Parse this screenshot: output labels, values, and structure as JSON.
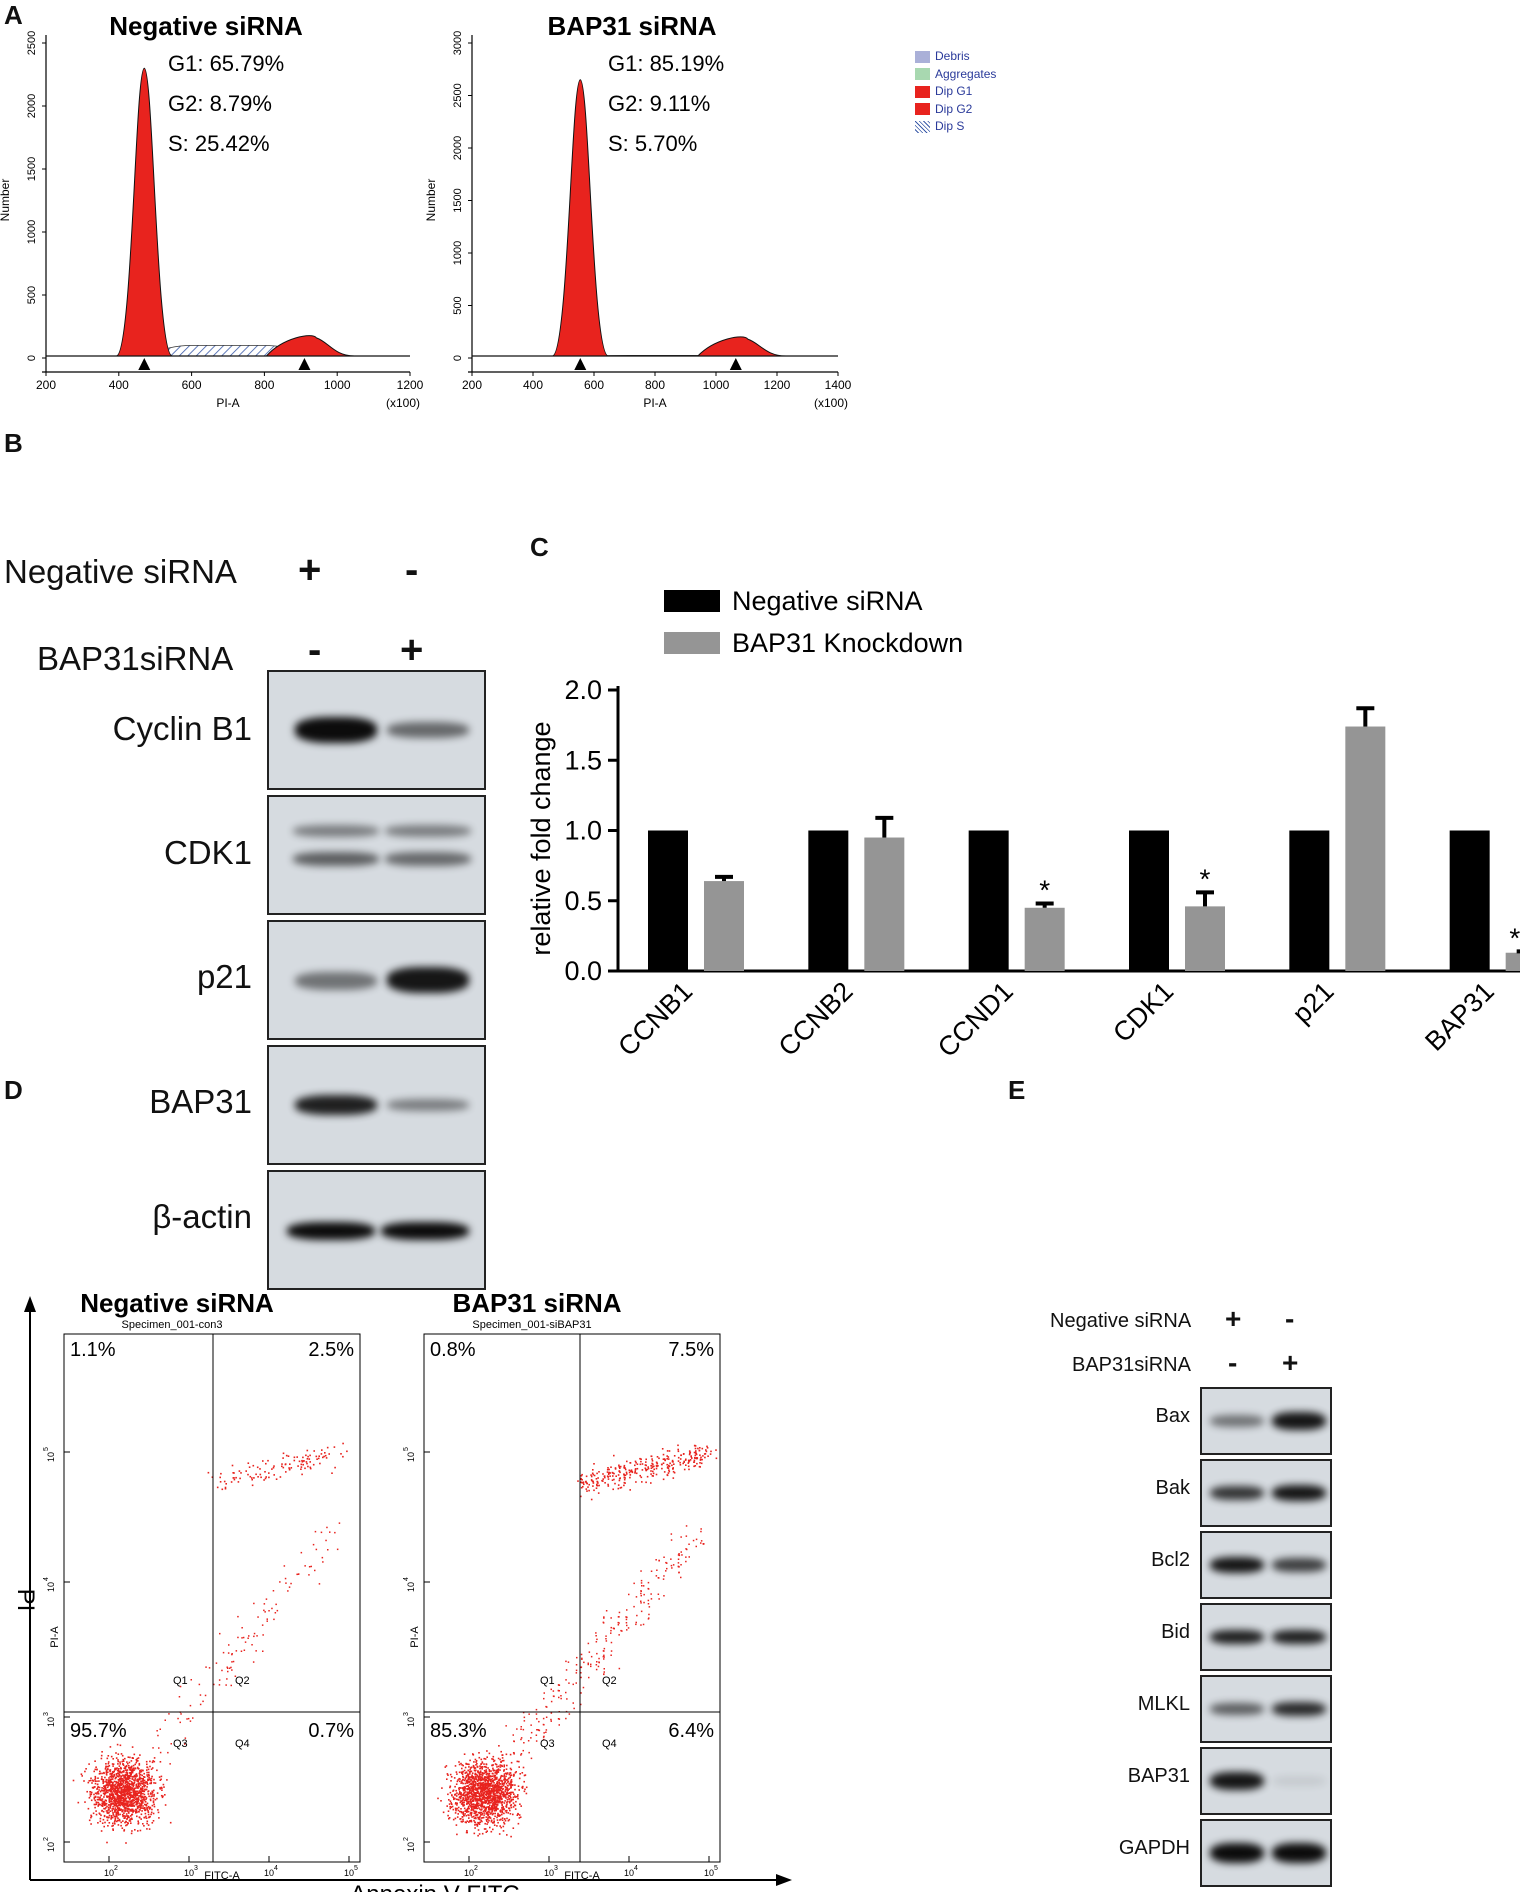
{
  "panels": {
    "a": "A",
    "b": "B",
    "c": "C",
    "d": "D",
    "e": "E"
  },
  "histograms": [
    {
      "title": "Negative siRNA",
      "g1": "G1: 65.79%",
      "g2": "G2: 8.79%",
      "s": "S: 25.42%",
      "ylabel": "Number",
      "xlabel": "PI-A",
      "xscale": "(x100)",
      "yticks": [
        "0",
        "500",
        "1000",
        "1500",
        "2000",
        "2500"
      ],
      "xticks": [
        "200",
        "400",
        "600",
        "800",
        "1000",
        "1200"
      ],
      "ymax": 2500,
      "xmin": 200,
      "xmax": 1200,
      "g1_peak": {
        "x": 470,
        "height": 2300
      },
      "g2_peak": {
        "x": 910,
        "height": 160
      }
    },
    {
      "title": "BAP31 siRNA",
      "g1": "G1: 85.19%",
      "g2": "G2: 9.11%",
      "s": "S: 5.70%",
      "ylabel": "Number",
      "xlabel": "PI-A",
      "xscale": "(x100)",
      "yticks": [
        "0",
        "500",
        "1000",
        "1500",
        "2000",
        "2500",
        "3000"
      ],
      "xticks": [
        "200",
        "400",
        "600",
        "800",
        "1000",
        "1200",
        "1400"
      ],
      "ymax": 3000,
      "xmin": 200,
      "xmax": 1400,
      "g1_peak": {
        "x": 555,
        "height": 2650
      },
      "g2_peak": {
        "x": 1065,
        "height": 180
      }
    }
  ],
  "legend_a": {
    "items": [
      {
        "label": "Debris",
        "color": "#aab0d8"
      },
      {
        "label": "Aggregates",
        "color": "#a8d8b0"
      },
      {
        "label": "Dip G1",
        "color": "#e8231e"
      },
      {
        "label": "Dip G2",
        "color": "#e8231e"
      },
      {
        "label": "Dip S",
        "color": "#3a5aa8"
      }
    ]
  },
  "blot_b": {
    "row1_label": "Negative siRNA",
    "row1": [
      "+",
      "-"
    ],
    "row2_label": "BAP31siRNA",
    "row2": [
      "-",
      "+"
    ],
    "proteins": [
      "Cyclin B1",
      "CDK1",
      "p21",
      "BAP31",
      "β-actin"
    ]
  },
  "chart_data": {
    "type": "bar",
    "categories": [
      "CCNB1",
      "CCNB2",
      "CCND1",
      "CDK1",
      "p21",
      "BAP31"
    ],
    "series": [
      {
        "name": "Negative siRNA",
        "values": [
          1.0,
          1.0,
          1.0,
          1.0,
          1.0,
          1.0
        ],
        "errors": [
          0,
          0,
          0,
          0,
          0,
          0
        ],
        "color": "#000000"
      },
      {
        "name": "BAP31 Knockdown",
        "values": [
          0.64,
          0.95,
          0.45,
          0.46,
          1.74,
          0.13
        ],
        "errors": [
          0.03,
          0.14,
          0.03,
          0.1,
          0.13,
          0.01
        ],
        "color": "#959595"
      }
    ],
    "significance": [
      "",
      "",
      "*",
      "*",
      "",
      "***"
    ],
    "ylabel": "relative fold change",
    "ylim": [
      0,
      2.0
    ],
    "yticks": [
      "0.0",
      "0.5",
      "1.0",
      "1.5",
      "2.0"
    ],
    "legend": "top-left"
  },
  "scatter": {
    "ylabel_outer": "PI",
    "xlabel_outer": "Annexin V-FITC",
    "plots": [
      {
        "title": "Negative siRNA",
        "specimen": "Specimen_001-con3",
        "q_tl": "1.1%",
        "q_tr": "2.5%",
        "q_bl": "95.7%",
        "q_br": "0.7%"
      },
      {
        "title": "BAP31 siRNA",
        "specimen": "Specimen_001-siBAP31",
        "q_tl": "0.8%",
        "q_tr": "7.5%",
        "q_bl": "85.3%",
        "q_br": "6.4%"
      }
    ],
    "axis_x": "FITC-A",
    "axis_y": "PI-A",
    "quads": [
      "Q1",
      "Q2",
      "Q3",
      "Q4"
    ],
    "dec_ticks": [
      "10",
      "10",
      "10",
      "10"
    ],
    "dec_exps": [
      "2",
      "3",
      "4",
      "5"
    ]
  },
  "blot_e": {
    "row1_label": "Negative siRNA",
    "row1": [
      "+",
      "-"
    ],
    "row2_label": "BAP31siRNA",
    "row2": [
      "-",
      "+"
    ],
    "proteins": [
      "Bax",
      "Bak",
      "Bcl2",
      "Bid",
      "MLKL",
      "BAP31",
      "GAPDH"
    ]
  }
}
